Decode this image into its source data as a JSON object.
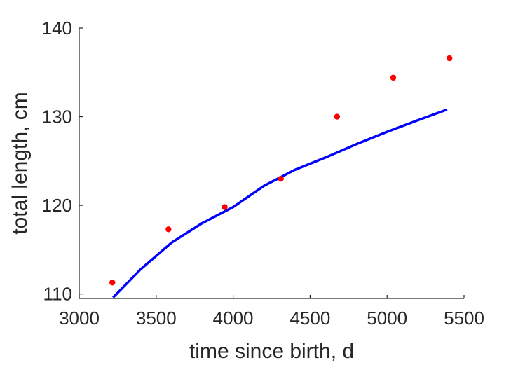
{
  "chart_data": {
    "type": "scatter",
    "title": "",
    "xlabel": "time since birth, d",
    "ylabel": "total length, cm",
    "xlim": [
      3000,
      5500
    ],
    "ylim": [
      109.5,
      140
    ],
    "xticks": [
      3000,
      3500,
      4000,
      4500,
      5000,
      5500
    ],
    "yticks": [
      110,
      120,
      130,
      140
    ],
    "grid": false,
    "series": [
      {
        "type": "scatter",
        "color": "#ff0000",
        "x": [
          3215,
          3580,
          3945,
          4310,
          4675,
          5040,
          5405
        ],
        "y": [
          111.3,
          117.3,
          119.8,
          123.0,
          130.0,
          134.4,
          136.6
        ]
      },
      {
        "type": "line",
        "color": "#0000ff",
        "x": [
          3220,
          3400,
          3600,
          3800,
          4000,
          4200,
          4400,
          4600,
          4800,
          5000,
          5200,
          5390
        ],
        "y": [
          109.6,
          112.8,
          115.8,
          118.0,
          119.8,
          122.2,
          124.0,
          125.4,
          126.9,
          128.3,
          129.6,
          130.8
        ]
      }
    ]
  }
}
